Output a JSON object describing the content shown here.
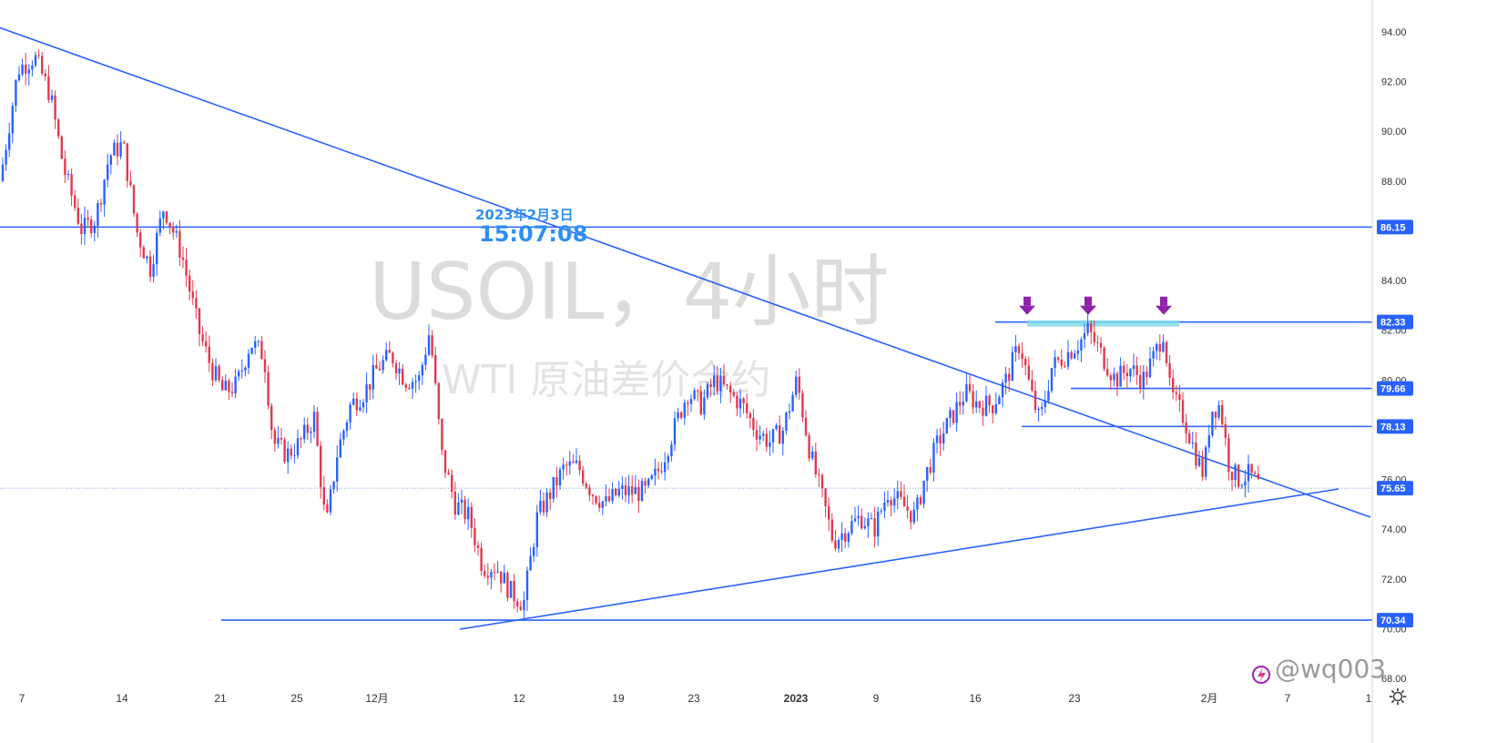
{
  "watermark": {
    "title": "USOIL，4小时",
    "subtitle": "WTI 原油差价合约"
  },
  "crosshair": {
    "date": "2023年2月3日",
    "time": "15:07:08"
  },
  "signature": {
    "handle": "@wq003"
  },
  "colors": {
    "up": "#2962ff",
    "down": "#e03a4e",
    "line": "#2962ff",
    "label_bg": "#2962ff",
    "arrow": "#8e24aa",
    "zone": "#7fdde8",
    "crosshair_text": "#2f8ff0"
  },
  "icons": [
    "gear-icon",
    "brand-icon"
  ],
  "chart_data": {
    "type": "candlestick",
    "title": "USOIL，4小时",
    "subtitle": "WTI 原油差价合约",
    "ylim": [
      67.5,
      95.0
    ],
    "y_ticks": [
      "94.00",
      "92.00",
      "90.00",
      "88.00",
      "86.00",
      "84.00",
      "82.00",
      "80.00",
      "78.00",
      "76.00",
      "74.00",
      "72.00",
      "70.00",
      "68.00"
    ],
    "x_ticks": [
      "7",
      "14",
      "21",
      "25",
      "12月",
      "12",
      "19",
      "23",
      "2023",
      "9",
      "16",
      "23",
      "2月",
      "7",
      "1"
    ],
    "price_label": "75.65",
    "levels": [
      {
        "value": 86.15,
        "label": "86.15"
      },
      {
        "value": 82.33,
        "label": "82.33"
      },
      {
        "value": 79.66,
        "label": "79.66"
      },
      {
        "value": 78.13,
        "label": "78.13"
      },
      {
        "value": 70.34,
        "label": "70.34"
      }
    ],
    "close_path": [
      [
        0,
        88.0
      ],
      [
        20,
        92.5
      ],
      [
        38,
        93.0
      ],
      [
        55,
        91.5
      ],
      [
        70,
        88.5
      ],
      [
        90,
        86.0
      ],
      [
        105,
        86.5
      ],
      [
        120,
        89.0
      ],
      [
        135,
        89.5
      ],
      [
        150,
        86.0
      ],
      [
        165,
        84.5
      ],
      [
        180,
        87.0
      ],
      [
        200,
        85.0
      ],
      [
        218,
        82.0
      ],
      [
        232,
        80.5
      ],
      [
        245,
        79.5
      ],
      [
        260,
        79.8
      ],
      [
        275,
        81.5
      ],
      [
        290,
        81.0
      ],
      [
        300,
        77.5
      ],
      [
        315,
        77.0
      ],
      [
        330,
        77.5
      ],
      [
        345,
        78.5
      ],
      [
        358,
        74.0
      ],
      [
        370,
        77.0
      ],
      [
        385,
        79.0
      ],
      [
        400,
        79.5
      ],
      [
        415,
        80.5
      ],
      [
        430,
        81.0
      ],
      [
        445,
        80.0
      ],
      [
        460,
        80.0
      ],
      [
        472,
        82.0
      ],
      [
        485,
        77.0
      ],
      [
        500,
        75.0
      ],
      [
        515,
        74.5
      ],
      [
        530,
        72.5
      ],
      [
        545,
        72.5
      ],
      [
        560,
        71.5
      ],
      [
        575,
        71.0
      ],
      [
        590,
        74.5
      ],
      [
        605,
        75.5
      ],
      [
        620,
        76.5
      ],
      [
        635,
        76.5
      ],
      [
        650,
        75.5
      ],
      [
        665,
        75.0
      ],
      [
        680,
        75.5
      ],
      [
        695,
        75.5
      ],
      [
        710,
        75.5
      ],
      [
        725,
        76.5
      ],
      [
        740,
        78.0
      ],
      [
        755,
        79.5
      ],
      [
        770,
        79.0
      ],
      [
        785,
        80.0
      ],
      [
        800,
        79.5
      ],
      [
        815,
        79.0
      ],
      [
        830,
        78.0
      ],
      [
        845,
        77.5
      ],
      [
        860,
        78.0
      ],
      [
        875,
        80.0
      ],
      [
        890,
        77.0
      ],
      [
        905,
        75.0
      ],
      [
        915,
        73.5
      ],
      [
        930,
        74.0
      ],
      [
        945,
        74.5
      ],
      [
        960,
        74.0
      ],
      [
        975,
        75.5
      ],
      [
        990,
        75.0
      ],
      [
        1005,
        74.5
      ],
      [
        1015,
        76.0
      ],
      [
        1030,
        77.5
      ],
      [
        1045,
        78.5
      ],
      [
        1060,
        79.5
      ],
      [
        1075,
        79.0
      ],
      [
        1090,
        79.0
      ],
      [
        1105,
        80.0
      ],
      [
        1120,
        81.5
      ],
      [
        1132,
        79.5
      ],
      [
        1142,
        78.3
      ],
      [
        1155,
        80.5
      ],
      [
        1170,
        81.0
      ],
      [
        1185,
        81.5
      ],
      [
        1195,
        82.0
      ],
      [
        1210,
        81.0
      ],
      [
        1225,
        80.0
      ],
      [
        1240,
        80.5
      ],
      [
        1255,
        80.0
      ],
      [
        1268,
        81.0
      ],
      [
        1278,
        82.0
      ],
      [
        1285,
        79.5
      ],
      [
        1300,
        78.5
      ],
      [
        1315,
        76.8
      ],
      [
        1322,
        76.2
      ],
      [
        1330,
        78.8
      ],
      [
        1340,
        79.0
      ],
      [
        1350,
        76.5
      ],
      [
        1360,
        76.0
      ],
      [
        1372,
        76.2
      ],
      [
        1385,
        75.65
      ]
    ],
    "trendlines": [
      {
        "from": [
          0,
          30.5
        ],
        "to": [
          1505,
          568
        ]
      },
      {
        "from": [
          505,
          691
        ],
        "to": [
          1470,
          537
        ]
      }
    ],
    "zone": {
      "y_top": 82.4,
      "y_bottom": 82.15,
      "x_from": 1128,
      "x_to": 1295
    },
    "arrows": [
      1128,
      1195,
      1278
    ]
  }
}
